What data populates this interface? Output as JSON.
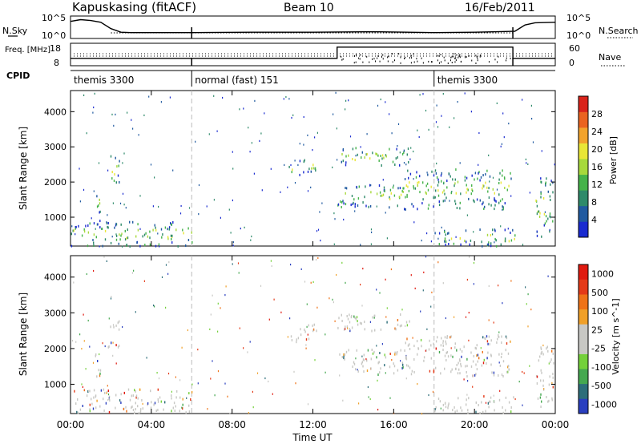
{
  "header": {
    "station": "Kapuskasing (fitACF)",
    "beam": "Beam 10",
    "date": "16/Feb/2011"
  },
  "chart_data": [
    {
      "type": "line",
      "panel": "noise",
      "left_label": "N.Sky",
      "right_label": "N.Search",
      "left_ticks": [
        "10^5",
        "10^0"
      ],
      "right_ticks": [
        "10^5",
        "10^0"
      ],
      "series": [
        {
          "values_hours": [
            0,
            0.5,
            1,
            1.5,
            2,
            2.5,
            3,
            6,
            9,
            12,
            15,
            18,
            20,
            22,
            22.5,
            23,
            24
          ],
          "values": [
            3.8,
            4.2,
            4.0,
            3.6,
            2.2,
            1.4,
            1.3,
            1.3,
            1.4,
            1.4,
            1.5,
            1.3,
            1.4,
            1.6,
            3.0,
            3.5,
            3.6
          ]
        }
      ],
      "ylim": [
        0,
        5
      ]
    },
    {
      "type": "line",
      "panel": "frequency",
      "left_label": "Freq. [MHz]",
      "right_label": "Nave",
      "left_ticks": [
        "18",
        "8"
      ],
      "right_ticks": [
        "60",
        "0"
      ],
      "freq_steps": [
        {
          "from": 0,
          "to": 13.2,
          "value": 11.3
        },
        {
          "from": 13.2,
          "to": 21.9,
          "value": 16.3
        },
        {
          "from": 21.9,
          "to": 24,
          "value": 11.3
        }
      ],
      "ylim": [
        8,
        18
      ]
    },
    {
      "type": "table",
      "panel": "cpid",
      "label": "CPID",
      "segments": [
        {
          "start": 0,
          "end": 6.0,
          "text": "themis 3300"
        },
        {
          "start": 6.0,
          "end": 18.0,
          "text": "normal (fast) 151"
        },
        {
          "start": 18.0,
          "end": 24,
          "text": "themis 3300"
        }
      ]
    },
    {
      "type": "heatmap",
      "panel": "power",
      "ylabel": "Slant Range [km]",
      "yticks": [
        1000,
        2000,
        3000,
        4000
      ],
      "ylim": [
        180,
        4600
      ],
      "colorbar_label": "Power [dB]",
      "colorbar_ticks": [
        "4",
        "8",
        "12",
        "16",
        "20",
        "24",
        "28"
      ],
      "colors": [
        "#1a2bd0",
        "#205aa0",
        "#2e8a6a",
        "#45b34a",
        "#a7d93c",
        "#e9e636",
        "#f2a32c",
        "#ea6320",
        "#d9231a"
      ],
      "regions": [
        {
          "t0": 1.2,
          "t1": 1.5,
          "r0": 900,
          "r1": 1900
        },
        {
          "t0": 1.8,
          "t1": 2.4,
          "r0": 2000,
          "r1": 2800
        },
        {
          "t0": 13.2,
          "t1": 16.5,
          "r0": 1300,
          "r1": 2000
        },
        {
          "t0": 16.5,
          "t1": 21.8,
          "r0": 1250,
          "r1": 2400
        },
        {
          "t0": 13.2,
          "t1": 16.8,
          "r0": 2500,
          "r1": 3000
        },
        {
          "t0": 10.8,
          "t1": 12.2,
          "r0": 2200,
          "r1": 2700
        },
        {
          "t0": 23.0,
          "t1": 23.9,
          "r0": 400,
          "r1": 2200
        },
        {
          "t0": 0.0,
          "t1": 6.0,
          "r0": 200,
          "r1": 900
        },
        {
          "t0": 18.0,
          "t1": 22.0,
          "r0": 200,
          "r1": 700
        }
      ]
    },
    {
      "type": "heatmap",
      "panel": "velocity",
      "ylabel": "Slant Range [km]",
      "yticks": [
        1000,
        2000,
        3000,
        4000
      ],
      "ylim": [
        180,
        4600
      ],
      "colorbar_label": "Velocity [m s^-1]",
      "colorbar_ticks": [
        "1000",
        "500",
        "100",
        "25",
        "-25",
        "-100",
        "-500",
        "-1000"
      ],
      "colors": [
        "#2a3fbf",
        "#2d6e7a",
        "#45a850",
        "#74d13a",
        "#c8c8c4",
        "#c8c8c4",
        "#f0a028",
        "#ef7318",
        "#e43a18",
        "#e01a10"
      ],
      "regions": [
        {
          "t0": 1.2,
          "t1": 1.5,
          "r0": 900,
          "r1": 1900
        },
        {
          "t0": 1.8,
          "t1": 2.4,
          "r0": 2000,
          "r1": 2800
        },
        {
          "t0": 13.2,
          "t1": 16.5,
          "r0": 1300,
          "r1": 2000
        },
        {
          "t0": 16.5,
          "t1": 21.8,
          "r0": 1250,
          "r1": 2400
        },
        {
          "t0": 13.2,
          "t1": 16.8,
          "r0": 2500,
          "r1": 3000
        },
        {
          "t0": 10.8,
          "t1": 12.2,
          "r0": 2200,
          "r1": 2700
        },
        {
          "t0": 23.0,
          "t1": 23.9,
          "r0": 400,
          "r1": 2200
        },
        {
          "t0": 0.0,
          "t1": 6.0,
          "r0": 200,
          "r1": 900
        },
        {
          "t0": 18.0,
          "t1": 22.0,
          "r0": 200,
          "r1": 700
        }
      ]
    }
  ],
  "xaxis": {
    "ticks": [
      "00:00",
      "04:00",
      "08:00",
      "12:00",
      "16:00",
      "20:00",
      "00:00"
    ],
    "label": "Time UT",
    "range_hours": [
      0,
      24
    ]
  }
}
